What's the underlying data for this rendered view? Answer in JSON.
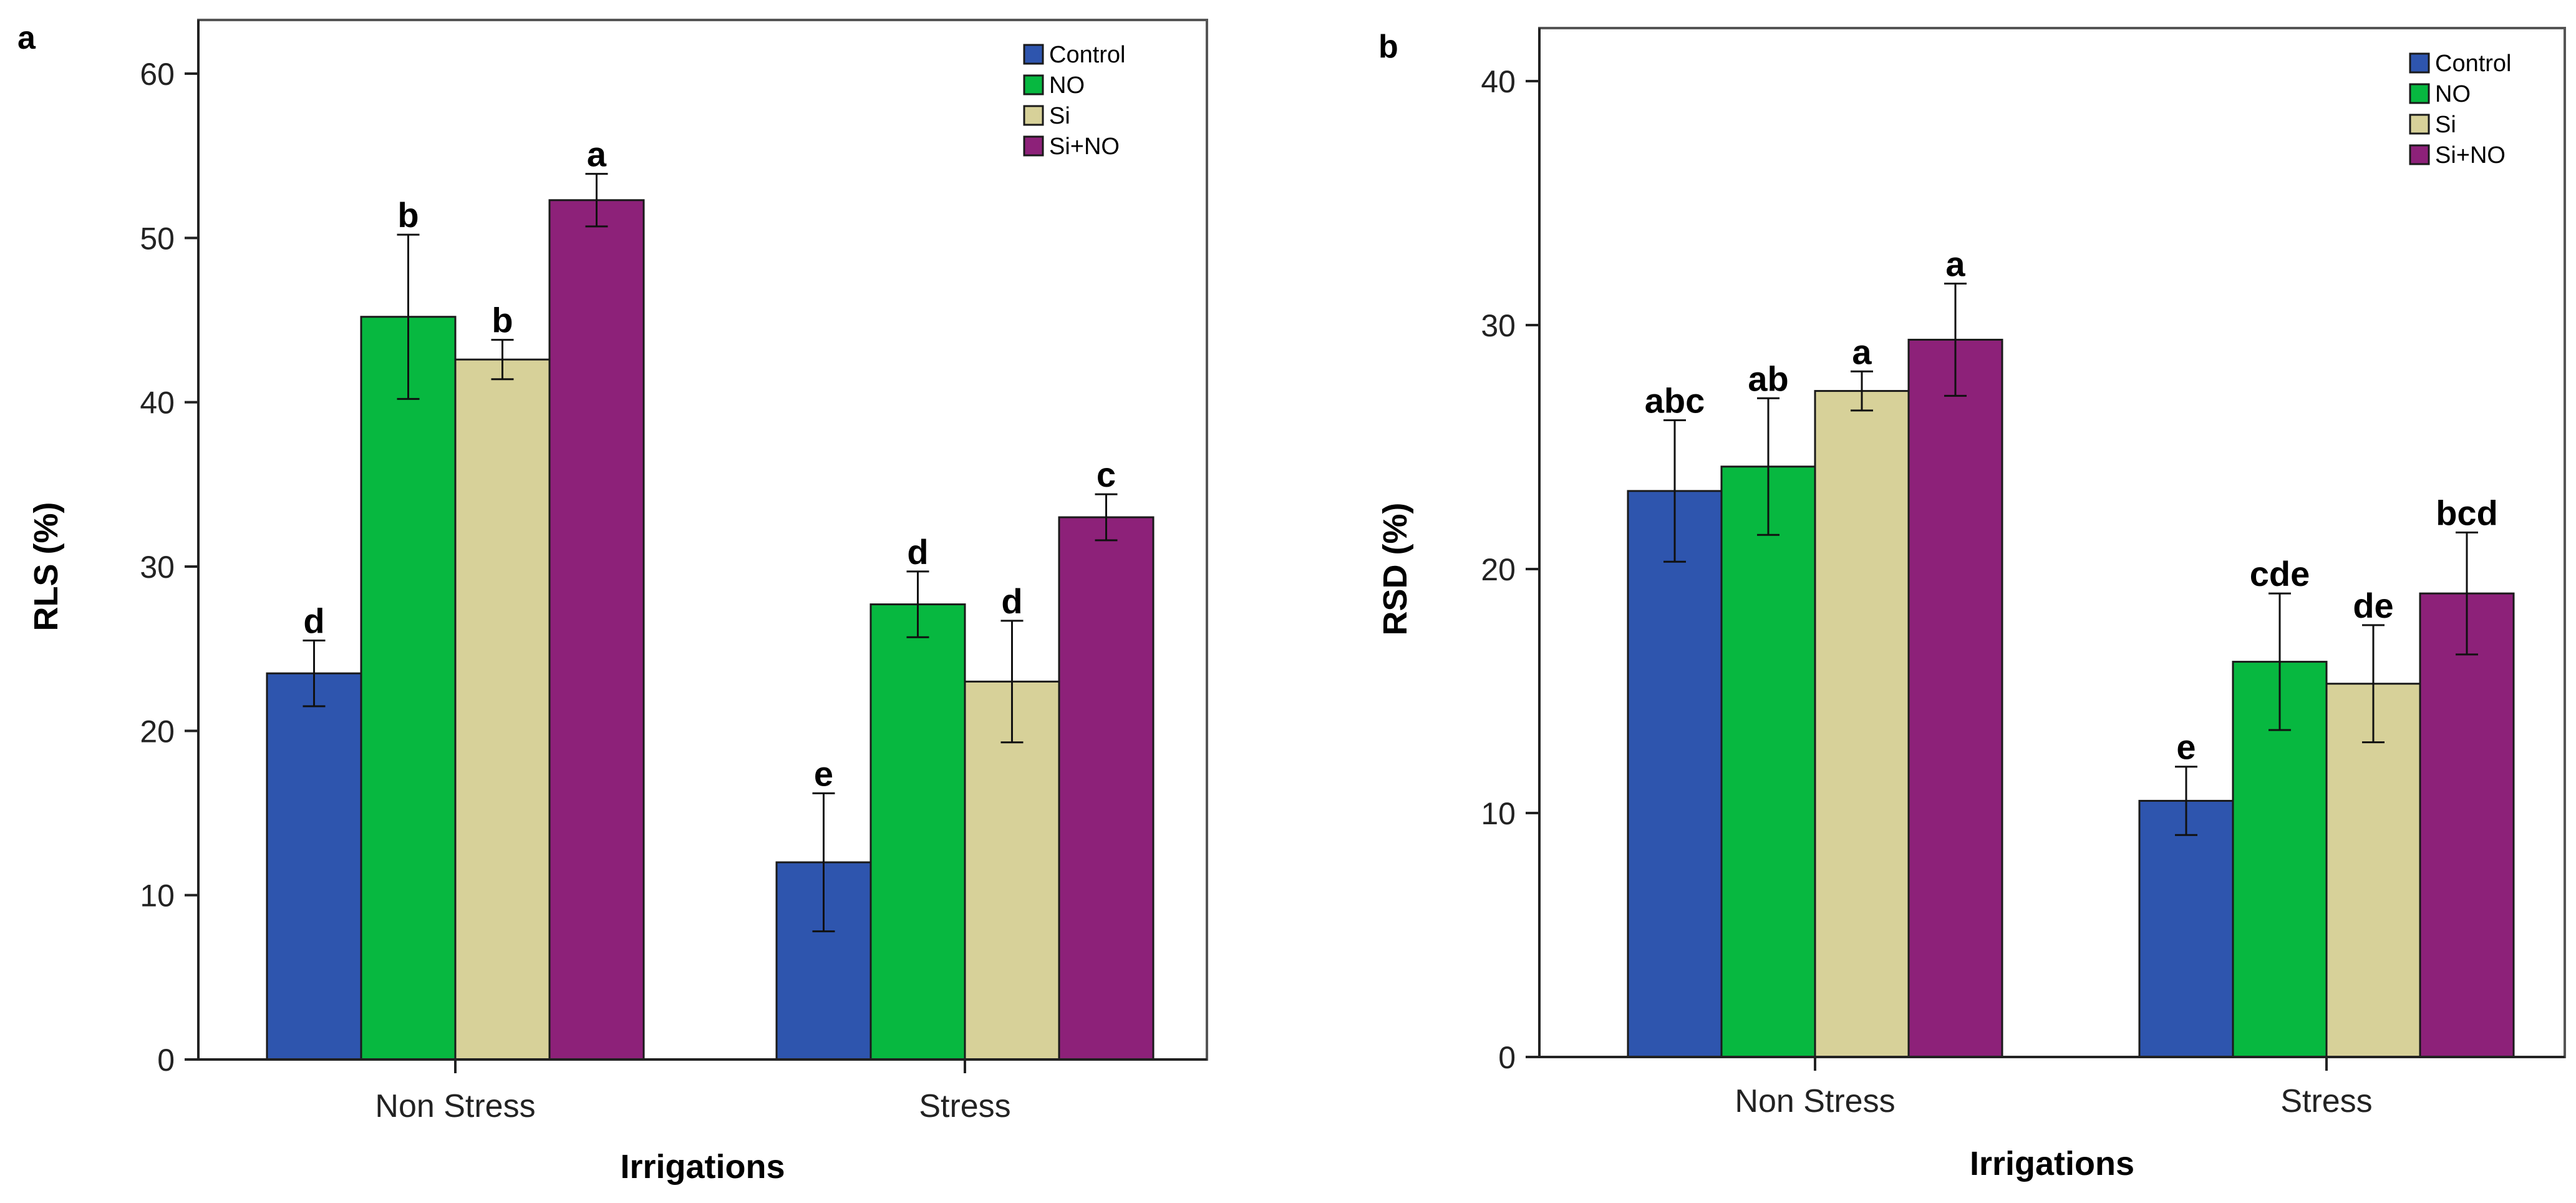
{
  "colors": {
    "Control": "#2e55ae",
    "NO": "#07b840",
    "Si": "#d7d199",
    "Si+NO": "#8d2179",
    "axis": "#222222",
    "frame": "#555555",
    "errorbar": "#111111"
  },
  "chart_data": [
    {
      "type": "bar",
      "panel_label": "a",
      "title": "",
      "xlabel": "Irrigations",
      "ylabel": "RLS (%)",
      "ylim": [
        0,
        60
      ],
      "yticks": [
        0,
        10,
        20,
        30,
        40,
        50,
        60
      ],
      "grid": false,
      "legend_position": "top-right",
      "categories": [
        "Non Stress",
        "Stress"
      ],
      "series": [
        {
          "name": "Control",
          "values": [
            23.5,
            12.0
          ],
          "errors": [
            2.0,
            4.2
          ],
          "letters": [
            "d",
            "e"
          ]
        },
        {
          "name": "NO",
          "values": [
            45.2,
            27.7
          ],
          "errors": [
            5.0,
            2.0
          ],
          "letters": [
            "b",
            "d"
          ]
        },
        {
          "name": "Si",
          "values": [
            42.6,
            23.0
          ],
          "errors": [
            1.2,
            3.7
          ],
          "letters": [
            "b",
            "d"
          ]
        },
        {
          "name": "Si+NO",
          "values": [
            52.3,
            33.0
          ],
          "errors": [
            1.6,
            1.4
          ],
          "letters": [
            "a",
            "c"
          ]
        }
      ]
    },
    {
      "type": "bar",
      "panel_label": "b",
      "title": "",
      "xlabel": "Irrigations",
      "ylabel": "RSD (%)",
      "ylim": [
        0,
        40
      ],
      "yticks": [
        0,
        10,
        20,
        30,
        40
      ],
      "grid": false,
      "legend_position": "top-right",
      "categories": [
        "Non Stress",
        "Stress"
      ],
      "series": [
        {
          "name": "Control",
          "values": [
            23.2,
            10.5
          ],
          "errors": [
            2.9,
            1.4
          ],
          "letters": [
            "abc",
            "e"
          ]
        },
        {
          "name": "NO",
          "values": [
            24.2,
            16.2
          ],
          "errors": [
            2.8,
            2.8
          ],
          "letters": [
            "ab",
            "cde"
          ]
        },
        {
          "name": "Si",
          "values": [
            27.3,
            15.3
          ],
          "errors": [
            0.8,
            2.4
          ],
          "letters": [
            "a",
            "de"
          ]
        },
        {
          "name": "Si+NO",
          "values": [
            29.4,
            19.0
          ],
          "errors": [
            2.3,
            2.5
          ],
          "letters": [
            "a",
            "bcd"
          ]
        }
      ]
    }
  ]
}
